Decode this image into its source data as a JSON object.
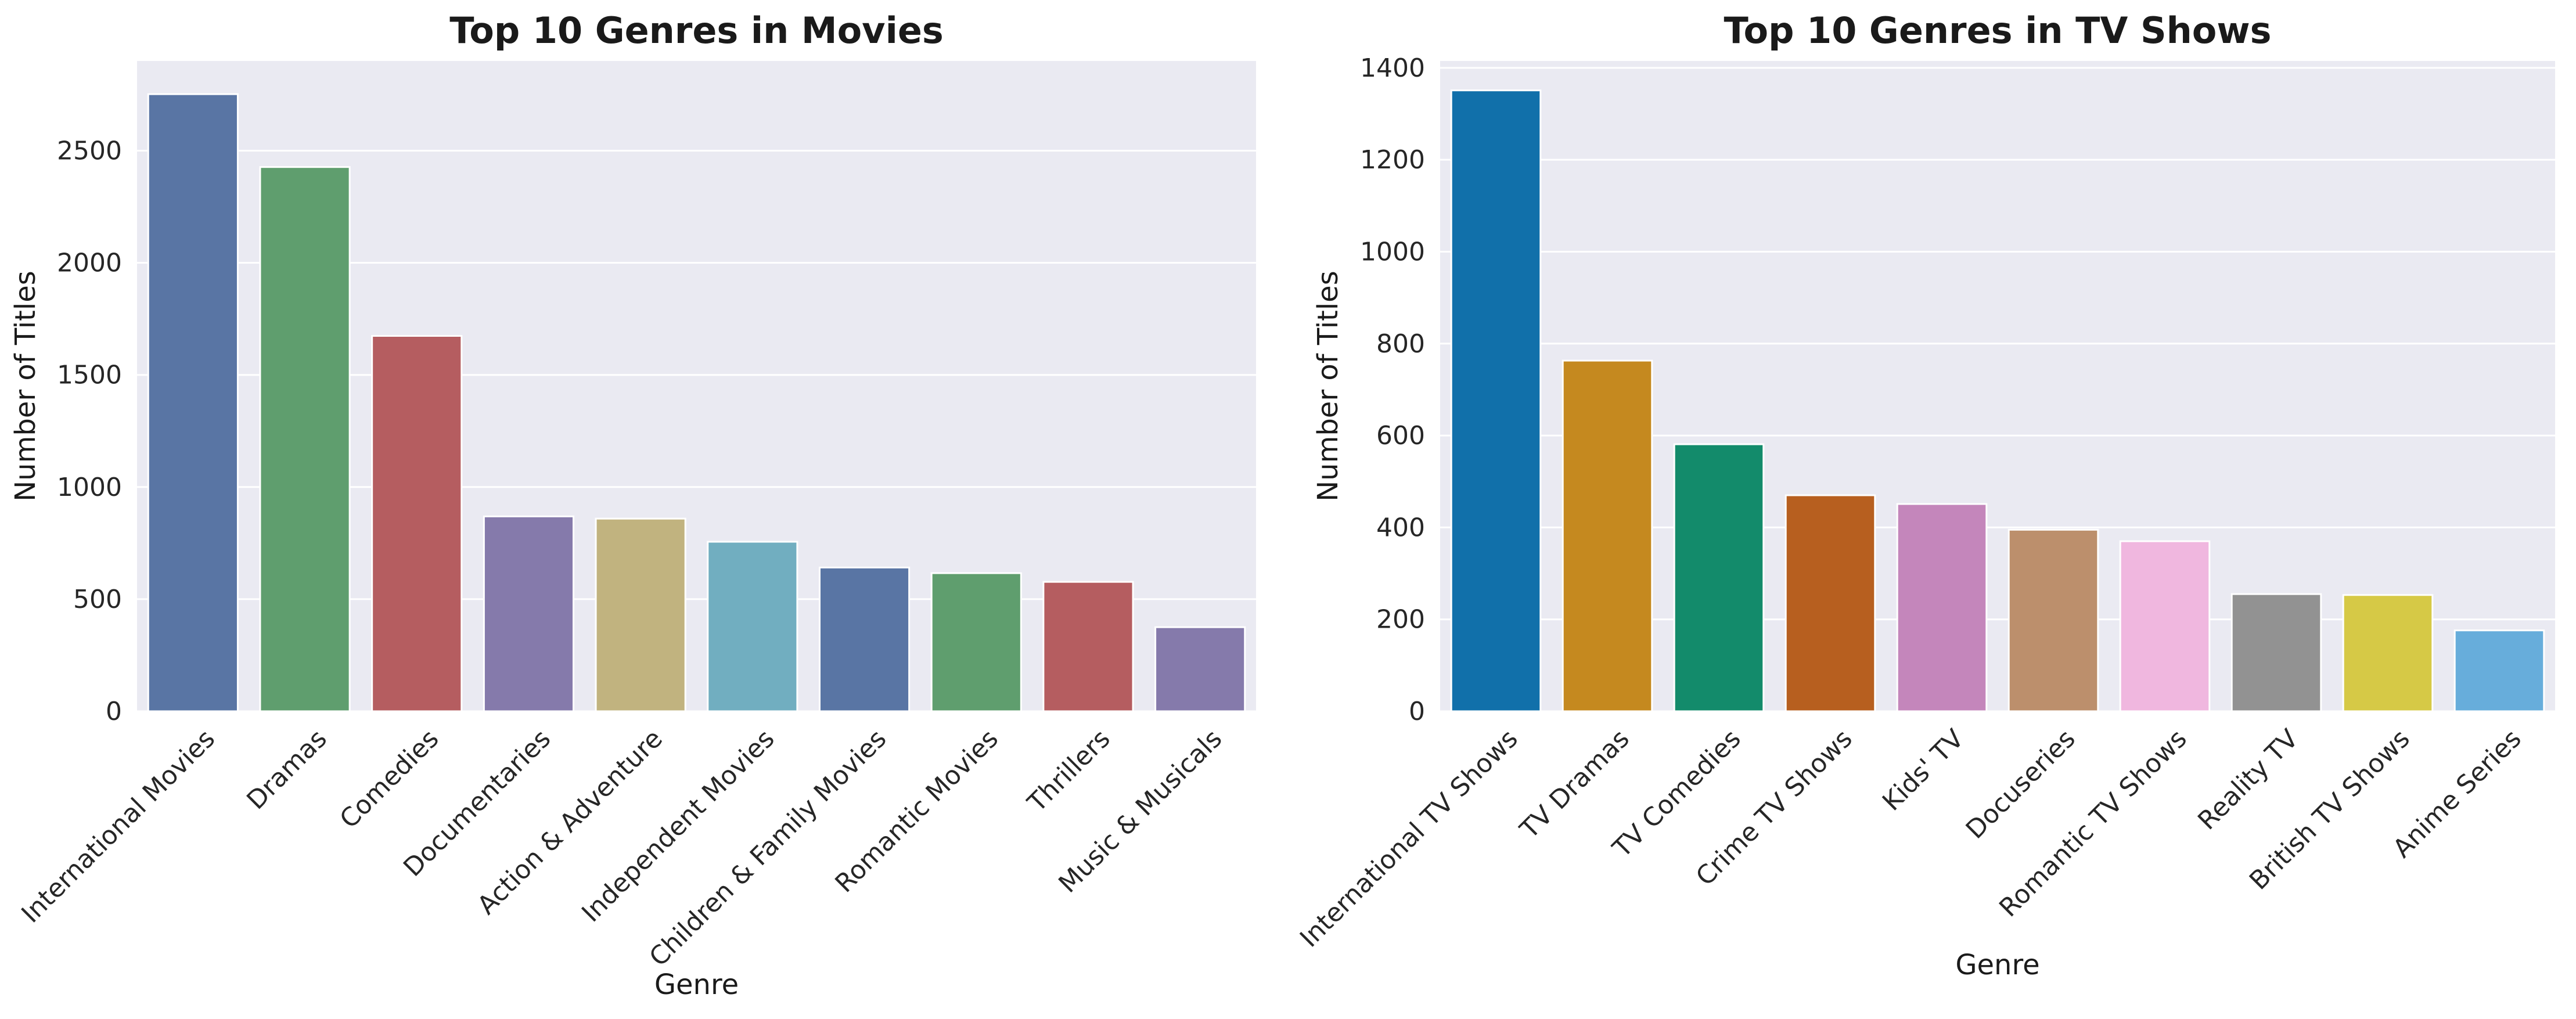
{
  "chart_data": [
    {
      "type": "bar",
      "title": "Top 10 Genres in Movies",
      "xlabel": "Genre",
      "ylabel": "Number of Titles",
      "ylim": [
        0,
        2900
      ],
      "yticks": [
        0,
        500,
        1000,
        1500,
        2000,
        2500
      ],
      "grid": true,
      "categories": [
        "International Movies",
        "Dramas",
        "Comedies",
        "Documentaries",
        "Action & Adventure",
        "Independent Movies",
        "Children & Family Movies",
        "Romantic Movies",
        "Thrillers",
        "Music & Musicals"
      ],
      "values": [
        2752,
        2427,
        1674,
        869,
        859,
        756,
        641,
        616,
        577,
        375
      ],
      "colors": [
        "#5975a4",
        "#5f9e6e",
        "#b55d60",
        "#857aab",
        "#c1b37f",
        "#71aec0",
        "#5975a4",
        "#5f9e6e",
        "#b55d60",
        "#857aab"
      ]
    },
    {
      "type": "bar",
      "title": "Top 10 Genres in TV Shows",
      "xlabel": "Genre",
      "ylabel": "Number of Titles",
      "ylim": [
        0,
        1415
      ],
      "yticks": [
        0,
        200,
        400,
        600,
        800,
        1000,
        1200,
        1400
      ],
      "grid": true,
      "categories": [
        "International TV Shows",
        "TV Dramas",
        "TV Comedies",
        "Crime TV Shows",
        "Kids' TV",
        "Docuseries",
        "Romantic TV Shows",
        "Reality TV",
        "British TV Shows",
        "Anime Series"
      ],
      "values": [
        1351,
        763,
        581,
        470,
        451,
        395,
        370,
        255,
        253,
        176
      ],
      "colors": [
        "#1170aa",
        "#c5891f",
        "#138b6b",
        "#b75f1f",
        "#c486bb",
        "#bc8f6c",
        "#f0b7df",
        "#929292",
        "#d6c946",
        "#67addb"
      ]
    }
  ]
}
